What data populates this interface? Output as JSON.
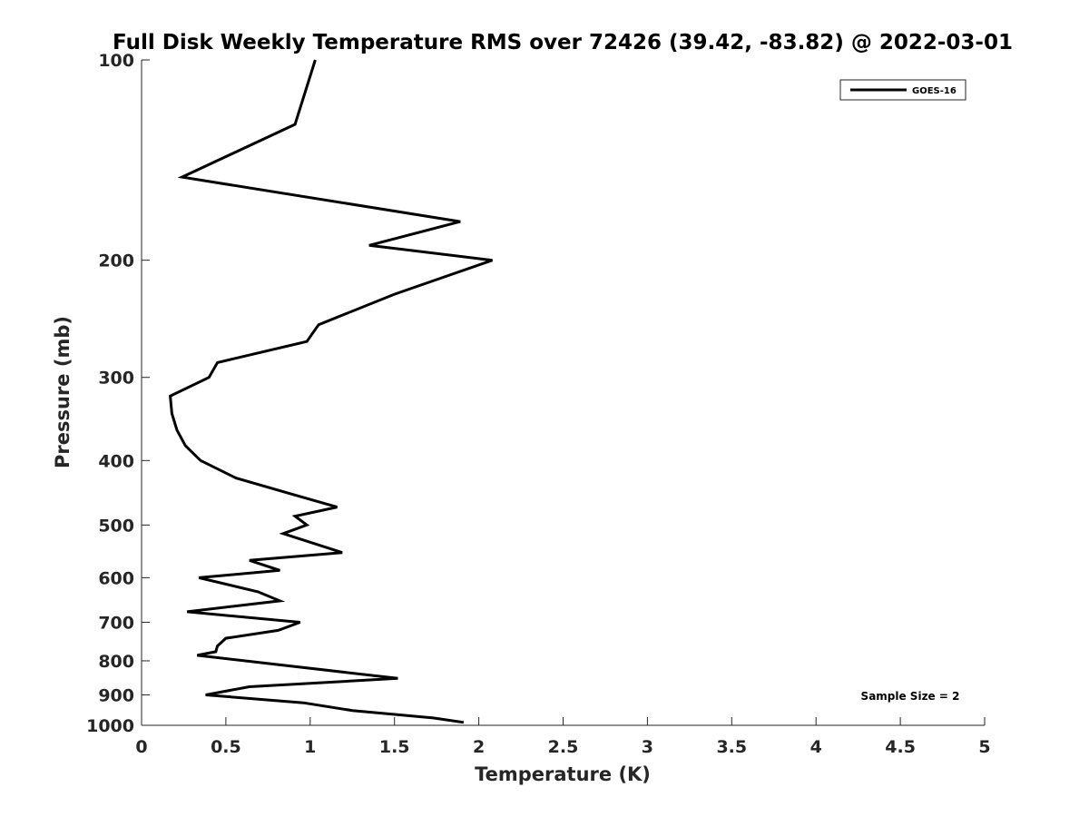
{
  "chart_data": {
    "type": "line",
    "title": "Full Disk Weekly Temperature RMS over 72426 (39.42, -83.82) @ 2022-03-01",
    "xlabel": "Temperature (K)",
    "ylabel": "Pressure (mb)",
    "xlim": [
      0,
      5
    ],
    "ylim": [
      100,
      1000
    ],
    "y_scale": "log",
    "y_reversed": true,
    "x_ticks": [
      "0",
      "0.5",
      "1",
      "1.5",
      "2",
      "2.5",
      "3",
      "3.5",
      "4",
      "4.5",
      "5"
    ],
    "y_ticks": [
      "100",
      "200",
      "300",
      "400",
      "500",
      "600",
      "700",
      "800",
      "900",
      "1000"
    ],
    "grid": false,
    "legend_position": "top-right",
    "color": "#000000",
    "annotation": "Sample Size = 2",
    "series": [
      {
        "name": "GOES-16",
        "x": [
          1.03,
          0.91,
          0.24,
          1.89,
          1.35,
          2.08,
          1.5,
          1.05,
          0.98,
          0.45,
          0.4,
          0.17,
          0.18,
          0.21,
          0.26,
          0.35,
          0.56,
          0.9,
          1.16,
          0.91,
          0.98,
          0.84,
          1.19,
          0.64,
          0.82,
          0.34,
          0.69,
          0.82,
          0.27,
          0.94,
          0.81,
          0.5,
          0.45,
          0.44,
          0.33,
          1.52,
          0.64,
          0.38,
          0.96,
          1.25,
          1.73,
          1.91
        ],
        "y": [
          100,
          125,
          150,
          175,
          190,
          200,
          225,
          250,
          265,
          285,
          300,
          320,
          340,
          360,
          380,
          400,
          425,
          450,
          470,
          485,
          500,
          515,
          550,
          565,
          585,
          600,
          630,
          650,
          675,
          700,
          720,
          740,
          760,
          775,
          785,
          850,
          875,
          900,
          925,
          950,
          975,
          990
        ]
      }
    ]
  }
}
